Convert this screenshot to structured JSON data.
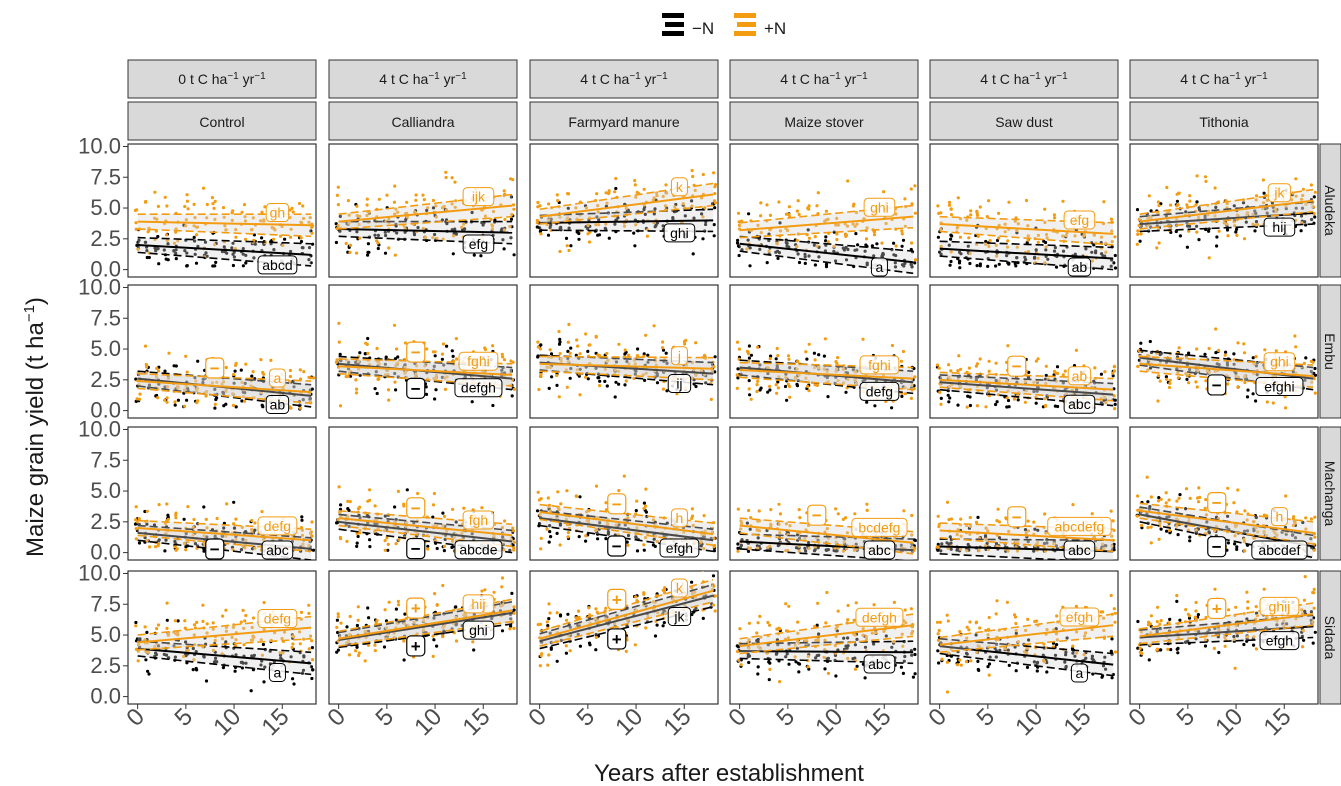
{
  "chart_data": {
    "type": "scatter",
    "title": "",
    "xlabel": "Years after establishment",
    "ylabel_main": "Maize grain yield (t ha",
    "ylabel_sup": "−1",
    "ylabel_close": ")",
    "xlim": [
      -1,
      18.5
    ],
    "ylim": [
      -0.6,
      10.2
    ],
    "x_ticks": [
      0,
      5,
      10,
      15
    ],
    "x_tick_labels": [
      "0",
      "5",
      "10",
      "15"
    ],
    "y_ticks": [
      0,
      2.5,
      5,
      7.5,
      10
    ],
    "y_tick_labels": [
      "0.0",
      "2.5",
      "5.0",
      "7.5",
      "10.0"
    ],
    "legend": {
      "position": "top",
      "items": [
        {
          "label": "−N",
          "color": "#000000"
        },
        {
          "label": "+N",
          "color": "#f39c12"
        }
      ]
    },
    "columns": [
      {
        "rate": "t C ha",
        "rate_value": "0",
        "unit_sup1": "−1",
        "unit_mid": " yr",
        "unit_sup2": "−1",
        "name": "Control"
      },
      {
        "rate": "t C ha",
        "rate_value": "4",
        "unit_sup1": "−1",
        "unit_mid": " yr",
        "unit_sup2": "−1",
        "name": "Calliandra"
      },
      {
        "rate": "t C ha",
        "rate_value": "4",
        "unit_sup1": "−1",
        "unit_mid": " yr",
        "unit_sup2": "−1",
        "name": "Farmyard manure"
      },
      {
        "rate": "t C ha",
        "rate_value": "4",
        "unit_sup1": "−1",
        "unit_mid": " yr",
        "unit_sup2": "−1",
        "name": "Maize stover"
      },
      {
        "rate": "t C ha",
        "rate_value": "4",
        "unit_sup1": "−1",
        "unit_mid": " yr",
        "unit_sup2": "−1",
        "name": "Saw dust"
      },
      {
        "rate": "t C ha",
        "rate_value": "4",
        "unit_sup1": "−1",
        "unit_mid": " yr",
        "unit_sup2": "−1",
        "name": "Tithonia"
      }
    ],
    "rows": [
      "Aludeka",
      "Embu",
      "Machanga",
      "Sidada"
    ],
    "panels": [
      [
        {
          "minusN": [
            2.0,
            1.2
          ],
          "plusN": [
            3.9,
            3.6
          ],
          "labelMinus": "abcd",
          "labelPlus": "gh",
          "signMinus": "",
          "signPlus": ""
        },
        {
          "minusN": [
            3.3,
            3.0
          ],
          "plusN": [
            3.9,
            5.2
          ],
          "labelMinus": "efg",
          "labelPlus": "ijk",
          "signMinus": "",
          "signPlus": ""
        },
        {
          "minusN": [
            3.8,
            4.0
          ],
          "plusN": [
            4.3,
            6.1
          ],
          "labelMinus": "ghi",
          "labelPlus": "k",
          "signMinus": "",
          "signPlus": ""
        },
        {
          "minusN": [
            2.1,
            0.6
          ],
          "plusN": [
            3.2,
            4.3
          ],
          "labelMinus": "a",
          "labelPlus": "ghi",
          "signMinus": "",
          "signPlus": ""
        },
        {
          "minusN": [
            1.7,
            0.9
          ],
          "plusN": [
            3.7,
            2.9
          ],
          "labelMinus": "ab",
          "labelPlus": "efg",
          "signMinus": "",
          "signPlus": ""
        },
        {
          "minusN": [
            3.7,
            4.6
          ],
          "plusN": [
            3.9,
            5.6
          ],
          "labelMinus": "hij",
          "labelPlus": "jk",
          "signMinus": "",
          "signPlus": ""
        }
      ],
      [
        {
          "minusN": [
            2.6,
            1.2
          ],
          "plusN": [
            2.4,
            1.5
          ],
          "labelMinus": "ab",
          "labelPlus": "a",
          "signMinus": "",
          "signPlus": "−"
        },
        {
          "minusN": [
            3.8,
            2.6
          ],
          "plusN": [
            3.6,
            2.9
          ],
          "labelMinus": "defgh",
          "labelPlus": "fghi",
          "signMinus": "−",
          "signPlus": "−"
        },
        {
          "minusN": [
            3.9,
            3.0
          ],
          "plusN": [
            3.8,
            3.4
          ],
          "labelMinus": "ij",
          "labelPlus": "j",
          "signMinus": "",
          "signPlus": ""
        },
        {
          "minusN": [
            3.5,
            2.3
          ],
          "plusN": [
            3.3,
            2.6
          ],
          "labelMinus": "defg",
          "labelPlus": "fghi",
          "signMinus": "",
          "signPlus": ""
        },
        {
          "minusN": [
            2.3,
            1.3
          ],
          "plusN": [
            2.5,
            1.7
          ],
          "labelMinus": "abc",
          "labelPlus": "ab",
          "signMinus": "",
          "signPlus": "−"
        },
        {
          "minusN": [
            4.3,
            2.6
          ],
          "plusN": [
            3.8,
            2.8
          ],
          "labelMinus": "efghi",
          "labelPlus": "ghi",
          "signMinus": "−",
          "signPlus": ""
        }
      ],
      [
        {
          "minusN": [
            1.6,
            0.3
          ],
          "plusN": [
            2.0,
            1.0
          ],
          "labelMinus": "abc",
          "labelPlus": "defg",
          "signMinus": "−",
          "signPlus": ""
        },
        {
          "minusN": [
            2.5,
            0.9
          ],
          "plusN": [
            2.8,
            1.4
          ],
          "labelMinus": "abcde",
          "labelPlus": "fgh",
          "signMinus": "−",
          "signPlus": "−"
        },
        {
          "minusN": [
            2.8,
            1.0
          ],
          "plusN": [
            3.3,
            1.5
          ],
          "labelMinus": "efgh",
          "labelPlus": "h",
          "signMinus": "−",
          "signPlus": "−"
        },
        {
          "minusN": [
            0.9,
            0.2
          ],
          "plusN": [
            2.2,
            0.8
          ],
          "labelMinus": "abc",
          "labelPlus": "bcdefg",
          "signMinus": "",
          "signPlus": "−"
        },
        {
          "minusN": [
            0.5,
            0.1
          ],
          "plusN": [
            1.8,
            1.0
          ],
          "labelMinus": "abc",
          "labelPlus": "abcdefg",
          "signMinus": "",
          "signPlus": "−"
        },
        {
          "minusN": [
            3.1,
            0.5
          ],
          "plusN": [
            3.4,
            1.6
          ],
          "labelMinus": "abcdef",
          "labelPlus": "h",
          "signMinus": "−",
          "signPlus": "−"
        }
      ],
      [
        {
          "minusN": [
            3.9,
            2.7
          ],
          "plusN": [
            4.4,
            5.6
          ],
          "labelMinus": "a",
          "labelPlus": "defg",
          "signMinus": "",
          "signPlus": ""
        },
        {
          "minusN": [
            4.6,
            6.8
          ],
          "plusN": [
            4.7,
            7.0
          ],
          "labelMinus": "ghi",
          "labelPlus": "hij",
          "signMinus": "+",
          "signPlus": "+"
        },
        {
          "minusN": [
            4.5,
            8.2
          ],
          "plusN": [
            4.7,
            8.6
          ],
          "labelMinus": "jk",
          "labelPlus": "k",
          "signMinus": "+",
          "signPlus": "+"
        },
        {
          "minusN": [
            3.7,
            3.6
          ],
          "plusN": [
            4.1,
            5.8
          ],
          "labelMinus": "abc",
          "labelPlus": "defgh",
          "signMinus": "",
          "signPlus": ""
        },
        {
          "minusN": [
            4.1,
            2.6
          ],
          "plusN": [
            4.2,
            5.8
          ],
          "labelMinus": "a",
          "labelPlus": "efgh",
          "signMinus": "",
          "signPlus": ""
        },
        {
          "minusN": [
            4.8,
            5.7
          ],
          "plusN": [
            4.9,
            6.7
          ],
          "labelMinus": "efgh",
          "labelPlus": "ghij",
          "signMinus": "",
          "signPlus": "+"
        }
      ]
    ]
  },
  "colors": {
    "minusN": "#000000",
    "plusN": "#f39c12",
    "strip_fill": "#d9d9d9",
    "panel_border": "#333333",
    "ci_band": "#d3d3d3"
  }
}
